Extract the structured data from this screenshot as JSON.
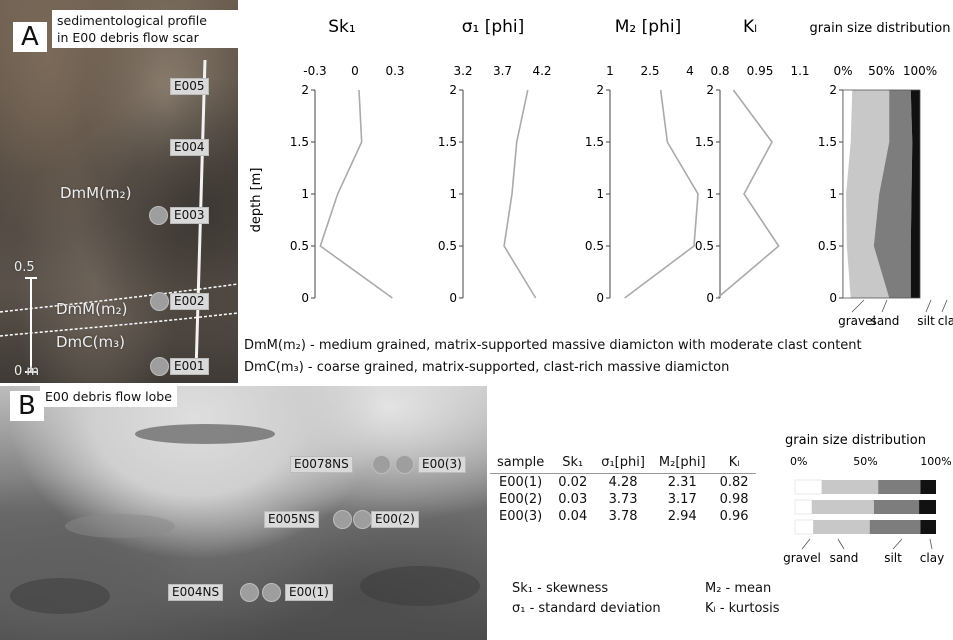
{
  "panel_a": {
    "letter": "A",
    "caption": [
      "sedimentological profile",
      "in E00 debris flow scar"
    ],
    "sample_tags": [
      "E005",
      "E004",
      "E003",
      "E002",
      "E001"
    ],
    "units": {
      "upper": "DmM(m₂)",
      "middle": "DmM(m₂)",
      "lower": "DmC(m₃)"
    },
    "scale": {
      "top": "0.5",
      "bottom": "0 m"
    },
    "legend_dmm": "DmM(m₂) - medium grained, matrix-supported massive diamicton with moderate clast content",
    "legend_dmc": "DmC(m₃)  - coarse grained, matrix-supported, clast-rich massive diamicton"
  },
  "panel_b": {
    "letter": "B",
    "caption": "E00 debris flow lobe",
    "tags": {
      "e0078ns": "E0078NS",
      "e003": "E00(3)",
      "e005ns": "E005NS",
      "e002": "E00(2)",
      "e004ns": "E004NS",
      "e001": "E00(1)"
    },
    "table": {
      "headers": [
        "sample",
        "Sk₁",
        "σ₁[phi]",
        "M₂[phi]",
        "Kₗ"
      ],
      "rows": [
        [
          "E00(1)",
          "0.02",
          "4.28",
          "2.31",
          "0.82"
        ],
        [
          "E00(2)",
          "0.03",
          "3.73",
          "3.17",
          "0.98"
        ],
        [
          "E00(3)",
          "0.04",
          "3.78",
          "2.94",
          "0.96"
        ]
      ]
    },
    "abbreviations": {
      "sk": "Sk₁ - skewness",
      "sigma": "σ₁  - standard deviation",
      "mz": "M₂ - mean",
      "kg": "Kₗ - kurtosis"
    }
  },
  "chart_data": [
    {
      "type": "line",
      "title": "Sk₁",
      "ylabel": "depth [m]",
      "xlim": [
        -0.3,
        0.3
      ],
      "xticks": [
        "-0.3",
        "0",
        "0.3"
      ],
      "ylim": [
        0,
        2
      ],
      "yticks": [
        "0",
        "0.5",
        "1",
        "1.5",
        "2"
      ],
      "x": [
        0.28,
        -0.26,
        -0.13,
        0.05,
        0.03
      ],
      "y": [
        0,
        0.5,
        1.0,
        1.5,
        2.0
      ]
    },
    {
      "type": "line",
      "title": "σ₁ [phi]",
      "xlim": [
        3.2,
        4.2
      ],
      "xticks": [
        "3.2",
        "3.7",
        "4.2"
      ],
      "ylim": [
        0,
        2
      ],
      "yticks": [
        "0",
        "0.5",
        "1",
        "1.5",
        "2"
      ],
      "x": [
        4.12,
        3.72,
        3.82,
        3.88,
        4.02
      ],
      "y": [
        0,
        0.5,
        1.0,
        1.5,
        2.0
      ]
    },
    {
      "type": "line",
      "title": "M₂ [phi]",
      "xlim": [
        1,
        4
      ],
      "xticks": [
        "1",
        "2.5",
        "4"
      ],
      "ylim": [
        0,
        2
      ],
      "yticks": [
        "0",
        "0.5",
        "1",
        "1.5",
        "2"
      ],
      "x": [
        1.55,
        4.15,
        4.3,
        3.15,
        2.9
      ],
      "y": [
        0,
        0.5,
        1.0,
        1.5,
        2.0
      ]
    },
    {
      "type": "line",
      "title": "Kₗ",
      "xlim": [
        0.8,
        1.1
      ],
      "xticks": [
        "0.8",
        "0.95",
        "1.1"
      ],
      "ylim": [
        0,
        2
      ],
      "yticks": [
        "0",
        "0.5",
        "1",
        "1.5",
        "2"
      ],
      "x": [
        0.79,
        1.02,
        0.89,
        0.995,
        0.85
      ],
      "y": [
        0,
        0.5,
        1.0,
        1.5,
        2.0
      ]
    },
    {
      "type": "area",
      "title": "grain size distribution",
      "xlim": [
        0,
        100
      ],
      "xticks": [
        "0%",
        "50%",
        "100%"
      ],
      "ylim": [
        0,
        2
      ],
      "yticks": [
        "0",
        "0.5",
        "1",
        "1.5",
        "2"
      ],
      "category_labels": [
        "gravel",
        "sand",
        "silt",
        "clay"
      ],
      "depth": [
        0,
        0.5,
        1.0,
        1.5,
        2.0
      ],
      "series": [
        {
          "name": "gravel",
          "cumulative": [
            10,
            5,
            4,
            10,
            12
          ],
          "color": "#ffffff"
        },
        {
          "name": "sand",
          "cumulative": [
            60,
            40,
            47,
            60,
            60
          ],
          "color": "#c8c8c8"
        },
        {
          "name": "silt",
          "cumulative": [
            88,
            88,
            89,
            90,
            88
          ],
          "color": "#7d7d7d"
        },
        {
          "name": "clay",
          "cumulative": [
            100,
            100,
            100,
            100,
            100
          ],
          "color": "#111111"
        }
      ]
    },
    {
      "type": "bar",
      "title": "grain size distribution",
      "xticks": [
        "0%",
        "50%",
        "100%"
      ],
      "categories": [
        "E00(1)",
        "E00(2)",
        "E00(3)"
      ],
      "category_labels": [
        "gravel",
        "sand",
        "silt",
        "clay"
      ],
      "series": [
        {
          "name": "gravel",
          "values": [
            19,
            12,
            13
          ],
          "color": "#ffffff"
        },
        {
          "name": "sand",
          "values": [
            40,
            44,
            40
          ],
          "color": "#c8c8c8"
        },
        {
          "name": "silt",
          "values": [
            30,
            32,
            36
          ],
          "color": "#7d7d7d"
        },
        {
          "name": "clay",
          "values": [
            11,
            12,
            11
          ],
          "color": "#111111"
        }
      ]
    }
  ]
}
